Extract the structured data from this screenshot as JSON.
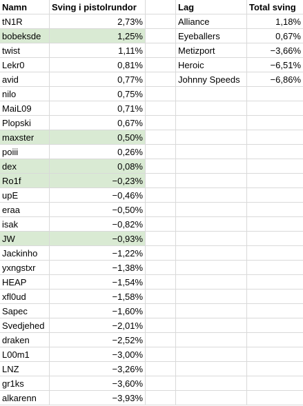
{
  "headers": {
    "name": "Namn",
    "swing": "Sving i pistolrundor",
    "team": "Lag",
    "total": "Total sving"
  },
  "players": [
    {
      "name": "tN1R",
      "swing": "2,73%",
      "highlight": false
    },
    {
      "name": "bobeksde",
      "swing": "1,25%",
      "highlight": true
    },
    {
      "name": "twist",
      "swing": "1,11%",
      "highlight": false
    },
    {
      "name": "Lekr0",
      "swing": "0,81%",
      "highlight": false
    },
    {
      "name": "avid",
      "swing": "0,77%",
      "highlight": false
    },
    {
      "name": "nilo",
      "swing": "0,75%",
      "highlight": false
    },
    {
      "name": "MaiL09",
      "swing": "0,71%",
      "highlight": false
    },
    {
      "name": "Plopski",
      "swing": "0,67%",
      "highlight": false
    },
    {
      "name": "maxster",
      "swing": "0,50%",
      "highlight": true
    },
    {
      "name": "poiii",
      "swing": "0,26%",
      "highlight": false
    },
    {
      "name": "dex",
      "swing": "0,08%",
      "highlight": true
    },
    {
      "name": "Ro1f",
      "swing": "−0,23%",
      "highlight": true
    },
    {
      "name": "upE",
      "swing": "−0,46%",
      "highlight": false
    },
    {
      "name": "eraa",
      "swing": "−0,50%",
      "highlight": false
    },
    {
      "name": "isak",
      "swing": "−0,82%",
      "highlight": false
    },
    {
      "name": "JW",
      "swing": "−0,93%",
      "highlight": true
    },
    {
      "name": "Jackinho",
      "swing": "−1,22%",
      "highlight": false
    },
    {
      "name": "yxngstxr",
      "swing": "−1,38%",
      "highlight": false
    },
    {
      "name": "HEAP",
      "swing": "−1,54%",
      "highlight": false
    },
    {
      "name": "xfl0ud",
      "swing": "−1,58%",
      "highlight": false
    },
    {
      "name": "Sapec",
      "swing": "−1,60%",
      "highlight": false
    },
    {
      "name": "Svedjehed",
      "swing": "−2,01%",
      "highlight": false
    },
    {
      "name": "draken",
      "swing": "−2,52%",
      "highlight": false
    },
    {
      "name": "L00m1",
      "swing": "−3,00%",
      "highlight": false
    },
    {
      "name": "LNZ",
      "swing": "−3,26%",
      "highlight": false
    },
    {
      "name": "gr1ks",
      "swing": "−3,60%",
      "highlight": false
    },
    {
      "name": "alkarenn",
      "swing": "−3,93%",
      "highlight": false
    }
  ],
  "teams": [
    {
      "team": "Alliance",
      "total": "1,18%"
    },
    {
      "team": "Eyeballers",
      "total": "0,67%"
    },
    {
      "team": "Metizport",
      "total": "−3,66%"
    },
    {
      "team": "Heroic",
      "total": "−6,51%"
    },
    {
      "team": "Johnny Speeds",
      "total": "−6,86%"
    }
  ],
  "colors": {
    "highlight": "#d9ead3",
    "gridline": "#d9d9d9"
  }
}
